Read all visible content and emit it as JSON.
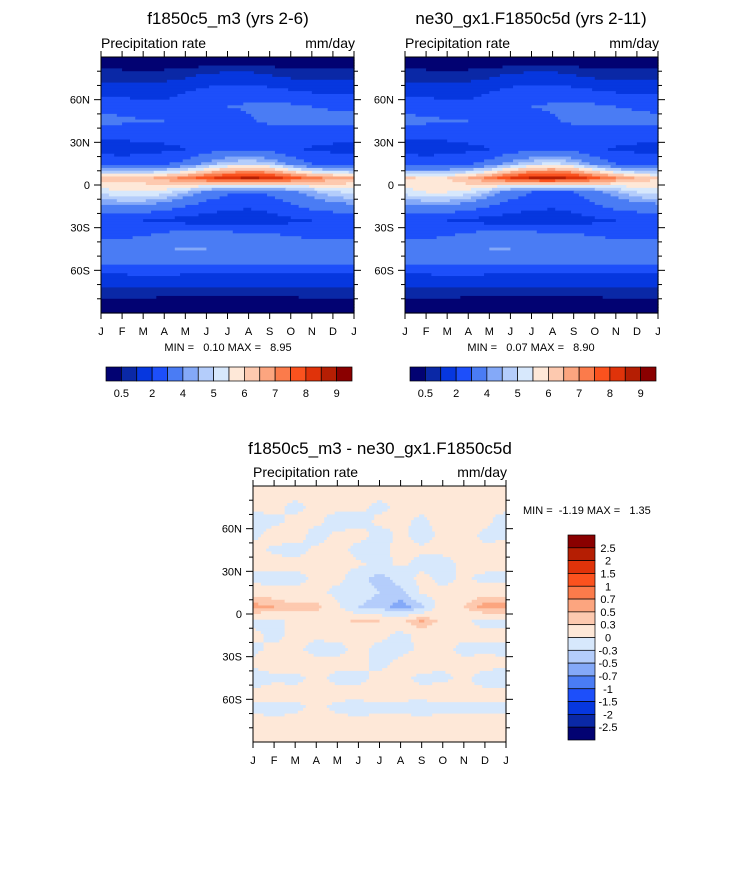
{
  "chart_data": [
    {
      "type": "heatmap",
      "title": "f1850c5_m3 (yrs 2-6)",
      "left_label": "Precipitation rate",
      "right_label": "mm/day",
      "stats": "MIN =   0.10 MAX =   8.95",
      "xticks": [
        "J",
        "F",
        "M",
        "A",
        "M",
        "J",
        "J",
        "A",
        "S",
        "O",
        "N",
        "D",
        "J"
      ],
      "yticks": [
        "60N",
        "30N",
        "0",
        "30S",
        "60S"
      ],
      "ytick_values": [
        60,
        30,
        0,
        -30,
        -60
      ],
      "xlabel": "",
      "ylabel": "",
      "lats": [
        85,
        75,
        65,
        55,
        45,
        35,
        25,
        15,
        5,
        -5,
        -15,
        -25,
        -35,
        -45,
        -55,
        -65,
        -75,
        -85
      ],
      "months": [
        "Jan",
        "Feb",
        "Mar",
        "Apr",
        "May",
        "Jun",
        "Jul",
        "Aug",
        "Sep",
        "Oct",
        "Nov",
        "Dec"
      ],
      "values": [
        [
          0.3,
          0.3,
          0.3,
          0.3,
          0.3,
          0.35,
          0.4,
          0.4,
          0.35,
          0.3,
          0.3,
          0.3
        ],
        [
          0.8,
          0.8,
          0.7,
          0.8,
          1.0,
          1.3,
          1.5,
          1.5,
          1.2,
          1.0,
          0.9,
          0.8
        ],
        [
          1.8,
          1.7,
          1.6,
          1.7,
          2.0,
          2.4,
          2.7,
          2.7,
          2.5,
          2.2,
          2.0,
          1.9
        ],
        [
          2.8,
          2.6,
          2.4,
          2.3,
          2.5,
          2.8,
          3.0,
          3.1,
          3.2,
          3.2,
          3.0,
          2.9
        ],
        [
          3.3,
          3.2,
          3.1,
          3.0,
          2.8,
          2.7,
          2.6,
          2.9,
          3.2,
          3.4,
          3.4,
          3.3
        ],
        [
          2.2,
          2.2,
          2.3,
          2.3,
          2.2,
          2.1,
          2.2,
          2.3,
          2.3,
          2.4,
          2.4,
          2.3
        ],
        [
          1.7,
          1.6,
          1.7,
          1.8,
          2.0,
          2.6,
          2.9,
          2.9,
          2.7,
          2.2,
          1.9,
          1.8
        ],
        [
          2.6,
          2.5,
          2.6,
          2.9,
          3.3,
          4.2,
          4.8,
          5.0,
          4.8,
          3.8,
          3.0,
          2.7
        ],
        [
          6.5,
          6.3,
          6.3,
          6.7,
          7.2,
          7.8,
          8.3,
          8.6,
          8.4,
          7.8,
          7.2,
          6.8
        ],
        [
          5.2,
          5.4,
          5.5,
          5.3,
          4.6,
          3.8,
          3.2,
          3.0,
          3.2,
          3.8,
          4.4,
          4.9
        ],
        [
          3.8,
          4.0,
          3.9,
          3.5,
          3.0,
          2.5,
          2.2,
          2.1,
          2.3,
          2.8,
          3.3,
          3.6
        ],
        [
          2.2,
          2.1,
          2.0,
          1.8,
          1.6,
          1.5,
          1.5,
          1.5,
          1.6,
          1.8,
          2.0,
          2.1
        ],
        [
          2.6,
          2.7,
          2.9,
          3.2,
          3.6,
          3.5,
          3.4,
          3.3,
          3.1,
          2.9,
          2.8,
          2.7
        ],
        [
          3.6,
          3.7,
          3.8,
          3.9,
          4.1,
          4.0,
          3.9,
          3.8,
          3.7,
          3.6,
          3.6,
          3.6
        ],
        [
          3.0,
          3.1,
          3.2,
          3.2,
          3.1,
          3.0,
          3.0,
          3.0,
          3.0,
          3.0,
          3.0,
          3.0
        ],
        [
          1.6,
          1.7,
          1.8,
          1.8,
          1.7,
          1.6,
          1.6,
          1.6,
          1.6,
          1.6,
          1.6,
          1.6
        ],
        [
          0.7,
          0.7,
          0.7,
          0.6,
          0.6,
          0.6,
          0.6,
          0.6,
          0.6,
          0.6,
          0.7,
          0.7
        ],
        [
          0.3,
          0.3,
          0.3,
          0.3,
          0.3,
          0.3,
          0.3,
          0.3,
          0.3,
          0.3,
          0.3,
          0.3
        ]
      ],
      "levels": [
        0.5,
        1,
        2,
        3,
        4,
        4.5,
        5,
        5.5,
        6,
        6.5,
        7,
        7.5,
        8,
        8.5,
        9
      ],
      "colorbar_labels": [
        "0.5",
        "2",
        "4",
        "5",
        "6",
        "7",
        "8",
        "9"
      ]
    },
    {
      "type": "heatmap",
      "title": "ne30_gx1.F1850c5d (yrs 2-11)",
      "left_label": "Precipitation rate",
      "right_label": "mm/day",
      "stats": "MIN =   0.07 MAX =   8.90",
      "xticks": [
        "J",
        "F",
        "M",
        "A",
        "M",
        "J",
        "J",
        "A",
        "S",
        "O",
        "N",
        "D",
        "J"
      ],
      "yticks": [
        "60N",
        "30N",
        "0",
        "30S",
        "60S"
      ],
      "ytick_values": [
        60,
        30,
        0,
        -30,
        -60
      ],
      "xlabel": "",
      "ylabel": "",
      "lats": [
        85,
        75,
        65,
        55,
        45,
        35,
        25,
        15,
        5,
        -5,
        -15,
        -25,
        -35,
        -45,
        -55,
        -65,
        -75,
        -85
      ],
      "months": [
        "Jan",
        "Feb",
        "Mar",
        "Apr",
        "May",
        "Jun",
        "Jul",
        "Aug",
        "Sep",
        "Oct",
        "Nov",
        "Dec"
      ],
      "values": [
        [
          0.3,
          0.3,
          0.3,
          0.3,
          0.3,
          0.35,
          0.4,
          0.4,
          0.35,
          0.3,
          0.3,
          0.3
        ],
        [
          0.8,
          0.8,
          0.7,
          0.8,
          1.0,
          1.3,
          1.5,
          1.5,
          1.2,
          1.0,
          0.9,
          0.8
        ],
        [
          1.8,
          1.7,
          1.6,
          1.7,
          2.0,
          2.4,
          2.7,
          2.7,
          2.5,
          2.2,
          2.0,
          1.9
        ],
        [
          2.8,
          2.6,
          2.4,
          2.3,
          2.5,
          2.8,
          3.0,
          3.1,
          3.2,
          3.2,
          3.0,
          2.9
        ],
        [
          3.2,
          3.2,
          3.1,
          3.0,
          2.8,
          2.7,
          2.7,
          2.9,
          3.2,
          3.3,
          3.4,
          3.3
        ],
        [
          2.2,
          2.2,
          2.2,
          2.3,
          2.2,
          2.1,
          2.2,
          2.3,
          2.3,
          2.4,
          2.4,
          2.3
        ],
        [
          1.7,
          1.6,
          1.7,
          1.8,
          2.0,
          2.5,
          2.8,
          2.9,
          2.7,
          2.2,
          1.9,
          1.8
        ],
        [
          2.6,
          2.5,
          2.6,
          2.9,
          3.4,
          4.3,
          4.9,
          5.1,
          4.8,
          3.8,
          3.0,
          2.7
        ],
        [
          6.1,
          5.9,
          6.0,
          6.5,
          7.2,
          8.0,
          8.6,
          8.7,
          8.4,
          7.7,
          7.0,
          6.4
        ],
        [
          5.3,
          5.5,
          5.5,
          5.3,
          4.5,
          3.6,
          3.0,
          2.9,
          3.0,
          3.7,
          4.4,
          5.0
        ],
        [
          3.7,
          3.9,
          3.9,
          3.5,
          3.0,
          2.5,
          2.2,
          2.1,
          2.3,
          2.8,
          3.3,
          3.6
        ],
        [
          2.2,
          2.1,
          2.0,
          1.8,
          1.6,
          1.5,
          1.5,
          1.5,
          1.6,
          1.8,
          2.0,
          2.1
        ],
        [
          2.6,
          2.7,
          2.9,
          3.2,
          3.5,
          3.5,
          3.4,
          3.3,
          3.1,
          2.9,
          2.8,
          2.7
        ],
        [
          3.6,
          3.7,
          3.8,
          3.9,
          4.0,
          4.0,
          3.9,
          3.8,
          3.7,
          3.6,
          3.6,
          3.6
        ],
        [
          3.0,
          3.1,
          3.2,
          3.2,
          3.1,
          3.0,
          3.0,
          3.0,
          3.0,
          3.0,
          3.0,
          3.0
        ],
        [
          1.6,
          1.7,
          1.8,
          1.8,
          1.7,
          1.6,
          1.6,
          1.6,
          1.6,
          1.6,
          1.6,
          1.6
        ],
        [
          0.7,
          0.7,
          0.7,
          0.6,
          0.6,
          0.6,
          0.6,
          0.6,
          0.6,
          0.6,
          0.7,
          0.7
        ],
        [
          0.3,
          0.3,
          0.3,
          0.3,
          0.3,
          0.3,
          0.3,
          0.3,
          0.3,
          0.3,
          0.3,
          0.3
        ]
      ],
      "levels": [
        0.5,
        1,
        2,
        3,
        4,
        4.5,
        5,
        5.5,
        6,
        6.5,
        7,
        7.5,
        8,
        8.5,
        9
      ],
      "colorbar_labels": [
        "0.5",
        "2",
        "4",
        "5",
        "6",
        "7",
        "8",
        "9"
      ]
    },
    {
      "type": "heatmap",
      "title": "f1850c5_m3 - ne30_gx1.F1850c5d",
      "left_label": "Precipitation rate",
      "right_label": "mm/day",
      "stats": "MIN =  -1.19 MAX =   1.35",
      "xticks": [
        "J",
        "F",
        "M",
        "A",
        "M",
        "J",
        "J",
        "A",
        "S",
        "O",
        "N",
        "D",
        "J"
      ],
      "yticks": [
        "60N",
        "30N",
        "0",
        "30S",
        "60S"
      ],
      "ytick_values": [
        60,
        30,
        0,
        -30,
        -60
      ],
      "xlabel": "",
      "ylabel": "",
      "lats": [
        85,
        75,
        65,
        55,
        45,
        35,
        25,
        15,
        5,
        -5,
        -15,
        -25,
        -35,
        -45,
        -55,
        -65,
        -75,
        -85
      ],
      "months": [
        "Jan",
        "Feb",
        "Mar",
        "Apr",
        "May",
        "Jun",
        "Jul",
        "Aug",
        "Sep",
        "Oct",
        "Nov",
        "Dec"
      ],
      "values": [
        [
          0.05,
          0.05,
          0.05,
          0.05,
          0.05,
          0.05,
          0.05,
          0.05,
          0.05,
          0.05,
          0.05,
          0.05
        ],
        [
          0.05,
          0.05,
          -0.05,
          0.05,
          0.05,
          0.05,
          -0.05,
          0.05,
          0.05,
          0.05,
          0.05,
          0.05
        ],
        [
          -0.1,
          -0.05,
          0.05,
          0.05,
          -0.1,
          -0.1,
          0.05,
          0.05,
          -0.05,
          0.1,
          0.05,
          0.05
        ],
        [
          -0.05,
          0.1,
          0.1,
          -0.1,
          0.05,
          0.1,
          -0.1,
          0.05,
          -0.1,
          0.05,
          0.1,
          -0.05
        ],
        [
          0.1,
          -0.05,
          -0.1,
          0.05,
          0.1,
          -0.1,
          -0.1,
          0.1,
          0.05,
          0.1,
          0.1,
          0.05
        ],
        [
          0.1,
          0.1,
          0.1,
          0.1,
          0.1,
          0.05,
          -0.1,
          0.05,
          -0.1,
          -0.15,
          0.1,
          0.15
        ],
        [
          -0.1,
          -0.15,
          -0.1,
          0.05,
          0.1,
          -0.2,
          -0.4,
          -0.2,
          0.1,
          -0.1,
          0.05,
          -0.1
        ],
        [
          0.2,
          0.15,
          0.1,
          0.1,
          -0.1,
          -0.2,
          -0.3,
          -0.4,
          0.05,
          0.1,
          0.1,
          0.2
        ],
        [
          0.6,
          0.5,
          0.35,
          0.4,
          0.05,
          -0.3,
          -0.4,
          -0.6,
          -0.4,
          0.2,
          0.3,
          0.6
        ],
        [
          -0.1,
          -0.1,
          0.1,
          0.1,
          0.2,
          0.35,
          0.3,
          0.2,
          0.55,
          0.2,
          0.05,
          -0.1
        ],
        [
          0.1,
          -0.1,
          0.1,
          0.05,
          0.1,
          0.05,
          0.1,
          -0.1,
          0.1,
          0.05,
          0.1,
          0.1
        ],
        [
          -0.1,
          0.1,
          0.05,
          -0.1,
          -0.1,
          0.1,
          -0.1,
          -0.1,
          0.05,
          0.1,
          -0.1,
          -0.1
        ],
        [
          0.1,
          0.3,
          0.2,
          0.1,
          0.1,
          0.1,
          -0.1,
          0.1,
          0.2,
          0.1,
          0.1,
          0.2
        ],
        [
          -0.3,
          -0.1,
          -0.1,
          0.1,
          -0.1,
          -0.1,
          0.1,
          0.1,
          -0.1,
          -0.1,
          0.1,
          -0.2
        ],
        [
          0.1,
          0.2,
          0.1,
          0.1,
          0.1,
          0.1,
          0.2,
          0.1,
          0.1,
          0.2,
          0.1,
          0.1
        ],
        [
          -0.05,
          -0.1,
          -0.05,
          0.05,
          -0.05,
          -0.1,
          -0.05,
          -0.05,
          -0.1,
          -0.05,
          -0.05,
          -0.05
        ],
        [
          0.05,
          0.05,
          0.05,
          0.05,
          0.05,
          0.05,
          0.05,
          0.05,
          0.05,
          0.05,
          0.05,
          0.05
        ],
        [
          0.02,
          0.02,
          0.02,
          0.02,
          0.02,
          0.02,
          0.02,
          0.02,
          0.02,
          0.02,
          0.02,
          0.02
        ]
      ],
      "levels": [
        -2.5,
        -2,
        -1.5,
        -1,
        -0.7,
        -0.5,
        -0.3,
        0,
        0.3,
        0.5,
        0.7,
        1,
        1.5,
        2,
        2.5
      ],
      "colorbar_labels": [
        "2.5",
        "2",
        "1.5",
        "1",
        "0.7",
        "0.5",
        "0.3",
        "0",
        "-0.3",
        "-0.5",
        "-0.7",
        "-1",
        "-1.5",
        "-2",
        "-2.5"
      ]
    }
  ],
  "colors": [
    "#020272",
    "#0a28a6",
    "#0637df",
    "#1d4ffa",
    "#4a7cf4",
    "#84a9f8",
    "#b4cdfb",
    "#d7e8fc",
    "#fee8d8",
    "#fdc9af",
    "#fca57f",
    "#fb7b4b",
    "#fb521e",
    "#e0330a",
    "#b51e03",
    "#8a0000"
  ]
}
